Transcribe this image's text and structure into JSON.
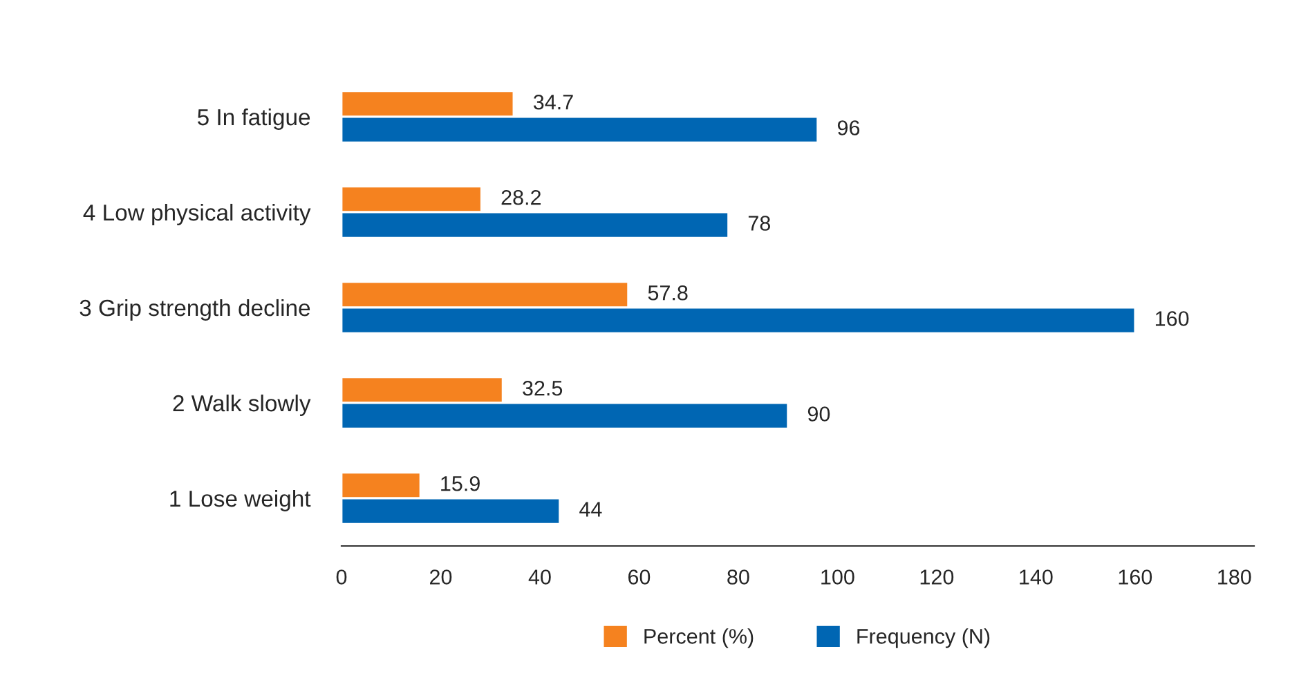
{
  "chart_data": {
    "type": "bar",
    "orientation": "horizontal",
    "categories": [
      "5 In fatigue",
      "4 Low physical activity",
      "3 Grip strength decline",
      "2 Walk slowly",
      "1 Lose weight"
    ],
    "series": [
      {
        "name": "Percent (%)",
        "color": "#f5821f",
        "values": [
          34.7,
          28.2,
          57.8,
          32.5,
          15.9
        ]
      },
      {
        "name": "Frequency (N)",
        "color": "#0066b3",
        "values": [
          96,
          78,
          160,
          90,
          44
        ]
      }
    ],
    "xlim": [
      0,
      184
    ],
    "xticks": [
      0,
      20,
      40,
      60,
      80,
      100,
      120,
      140,
      160,
      180
    ],
    "data_labels": true,
    "legend": "bottom",
    "grid": false
  }
}
